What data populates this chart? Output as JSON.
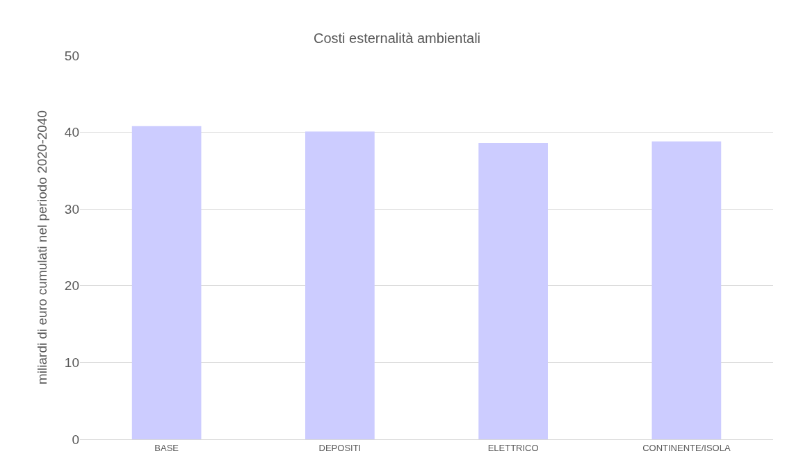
{
  "chart_data": {
    "type": "bar",
    "title": "Costi esternalità ambientali",
    "ylabel": "miliardi di euro cumulati nel periodo 2020-2040",
    "categories": [
      "BASE",
      "DEPOSITI",
      "ELETTRICO",
      "CONTINENTE/ISOLA"
    ],
    "values": [
      40.8,
      40.1,
      38.6,
      38.8
    ],
    "color": "#ccccff",
    "ylim": [
      0,
      50
    ],
    "yticks": [
      0,
      10,
      20,
      30,
      40,
      50
    ],
    "grid": "y"
  }
}
